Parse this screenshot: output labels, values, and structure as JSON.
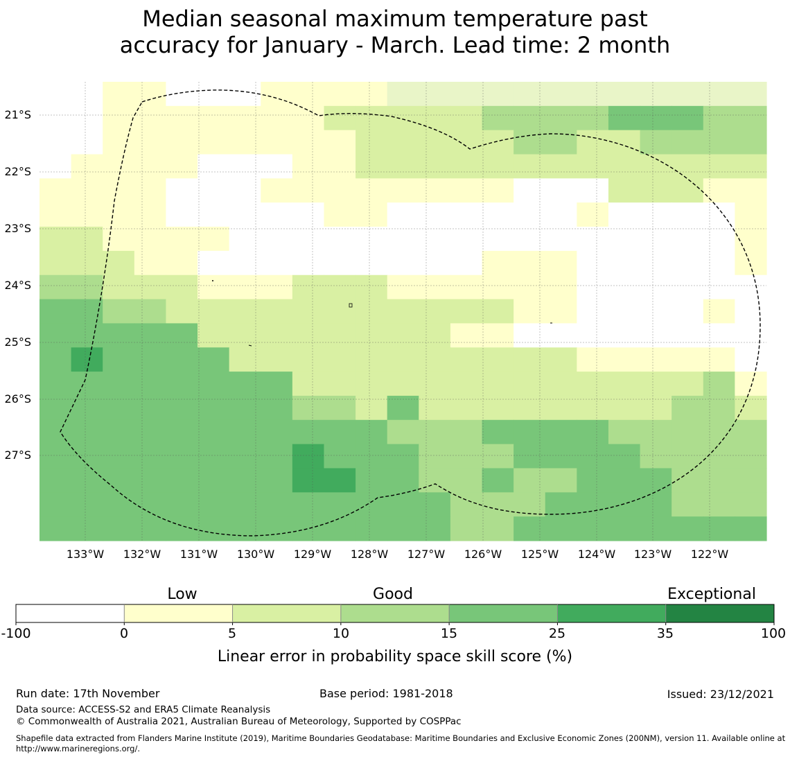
{
  "title": {
    "line1": "Median seasonal maximum temperature past",
    "line2": "accuracy for January - March. Lead time: 2 month"
  },
  "map": {
    "lon_labels": [
      "133°W",
      "132°W",
      "131°W",
      "130°W",
      "129°W",
      "128°W",
      "127°W",
      "126°W",
      "125°W",
      "124°W",
      "123°W",
      "122°W"
    ],
    "lat_labels": [
      "21°S",
      "22°S",
      "23°S",
      "24°S",
      "25°S",
      "26°S",
      "27°S"
    ],
    "grid_rows": [
      "00110001111666666666666",
      "00111111122222333344433",
      "00111111112222233223333",
      "01111000112222222222222",
      "11110001111111100022211",
      "11110000011000000100001",
      "22111100000000000000001",
      "22211000000000111000001",
      "33222111222111111000000",
      "44332222222222211000010",
      "44444222222221100000000",
      "45444422222222222111110",
      "44444444222222222222231",
      "44444444332422222222332",
      "44444444444333444433333",
      "44444444544433344443333",
      "44444444554433433444333",
      "44444444444443334444333",
      "44444444444443344444444"
    ],
    "colors": [
      "#ffffff",
      "#ffffcc",
      "#d9f0a3",
      "#addd8e",
      "#78c679",
      "#41ab5d",
      "#e9f5c8"
    ]
  },
  "colorbar": {
    "category_labels": [
      "Low",
      "Good",
      "Exceptional"
    ],
    "tick_labels": [
      "-100",
      "0",
      "5",
      "10",
      "15",
      "25",
      "35",
      "100"
    ],
    "colors": [
      "#ffffff",
      "#ffffcc",
      "#d9f0a3",
      "#addd8e",
      "#78c679",
      "#41ab5d",
      "#238443"
    ],
    "axis_label": "Linear error in probability space skill score (%)"
  },
  "footer": {
    "run_date": "Run date: 17th November",
    "base_period": "Base period: 1981-2018",
    "issued": "Issued: 23/12/2021",
    "data_source": "Data source: ACCESS-S2 and ERA5 Climate Reanalysis",
    "copyright": "© Commonwealth of Australia 2021, Australian Bureau of Meteorology, Supported by COSPPac",
    "shapefile": "Shapefile data extracted from Flanders Marine Institute (2019), Maritime Boundaries Geodatabase: Maritime Boundaries and Exclusive Economic Zones (200NM), version 11. Available online at http://www.marineregions.org/."
  }
}
